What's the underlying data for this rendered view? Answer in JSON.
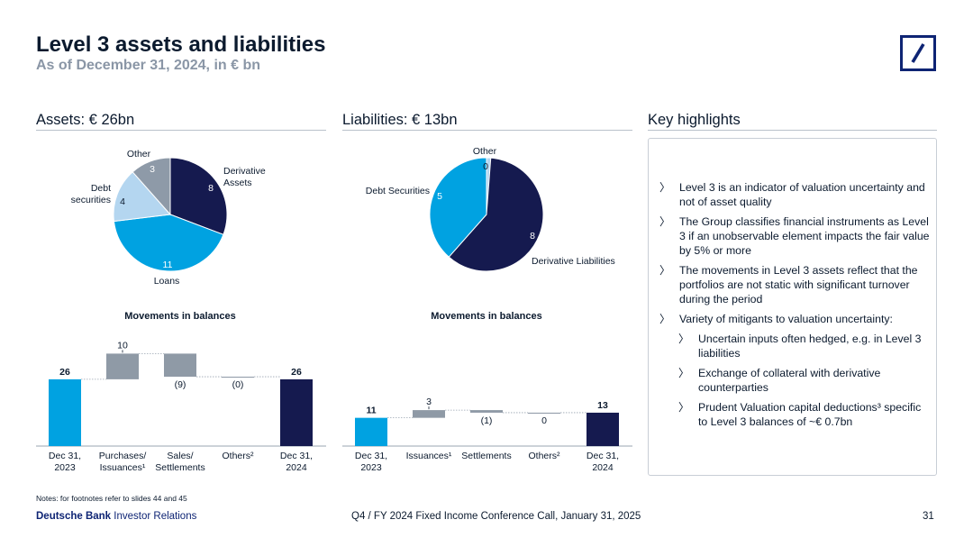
{
  "header": {
    "title": "Level 3 assets and liabilities",
    "subtitle": "As of December 31, 2024, in € bn"
  },
  "sections": {
    "assets": "Assets: € 26bn",
    "liabilities": "Liabilities: € 13bn",
    "highlights": "Key highlights"
  },
  "highlights": [
    {
      "text": "Level 3 is an indicator of valuation uncertainty and not of asset quality",
      "level": 1
    },
    {
      "text": "The Group classifies financial instruments as Level 3 if an unobservable element impacts the fair value by 5% or more",
      "level": 1
    },
    {
      "text": "The movements in Level 3 assets reflect that the portfolios are not static with significant turnover during the period",
      "level": 1
    },
    {
      "text": "Variety of mitigants to valuation uncertainty:",
      "level": 1
    },
    {
      "text": "Uncertain inputs often hedged, e.g. in Level 3 liabilities",
      "level": 2
    },
    {
      "text": "Exchange of collateral with derivative counterparties",
      "level": 2
    },
    {
      "text": "Prudent Valuation capital deductions³ specific to Level 3 balances of ~€ 0.7bn",
      "level": 2
    }
  ],
  "colors": {
    "navy": "#151a4f",
    "blue": "#00a2e1",
    "light_blue": "#b4d6f0",
    "grey": "#8e9aa8",
    "bridge_grey": "#8f9aa6"
  },
  "footer": {
    "notes": "Notes: for footnotes refer to slides 44 and 45",
    "brand_bold": "Deutsche Bank",
    "brand_rest": " Investor Relations",
    "event": "Q4 / FY 2024 Fixed Income Conference Call, January 31, 2025",
    "page": "31"
  },
  "chart_data": [
    {
      "id": "assets-pie",
      "type": "pie",
      "title": "Assets: € 26bn",
      "slices": [
        {
          "label": "Derivative Assets",
          "value": 8
        },
        {
          "label": "Loans",
          "value": 11
        },
        {
          "label": "Debt securities",
          "value": 4
        },
        {
          "label": "Other",
          "value": 3
        }
      ]
    },
    {
      "id": "liabilities-pie",
      "type": "pie",
      "title": "Liabilities: € 13bn",
      "slices": [
        {
          "label": "Derivative Liabilities",
          "value": 8
        },
        {
          "label": "Debt Securities",
          "value": 5
        },
        {
          "label": "Other",
          "value": 0
        }
      ]
    },
    {
      "id": "assets-movements",
      "type": "bar",
      "title": "Movements in balances",
      "categories": [
        [
          "Dec 31,",
          "2023"
        ],
        [
          "Purchases/",
          "Issuances¹"
        ],
        [
          "Sales/",
          "Settlements"
        ],
        [
          "Others²"
        ],
        [
          "Dec 31,",
          "2024"
        ]
      ],
      "kinds": [
        "total",
        "delta",
        "delta",
        "delta",
        "total"
      ],
      "values": [
        26,
        10,
        -9,
        0,
        26
      ],
      "labels": [
        "26",
        "10",
        "(9)",
        "(0)",
        "26"
      ]
    },
    {
      "id": "liabilities-movements",
      "type": "bar",
      "title": "Movements in balances",
      "categories": [
        [
          "Dec 31,",
          "2023"
        ],
        [
          "Issuances¹"
        ],
        [
          "Settlements"
        ],
        [
          "Others²"
        ],
        [
          "Dec 31,",
          "2024"
        ]
      ],
      "kinds": [
        "total",
        "delta",
        "delta",
        "delta",
        "total"
      ],
      "values": [
        11,
        3,
        -1,
        0,
        13
      ],
      "labels": [
        "11",
        "3",
        "(1)",
        "0",
        "13"
      ]
    }
  ]
}
